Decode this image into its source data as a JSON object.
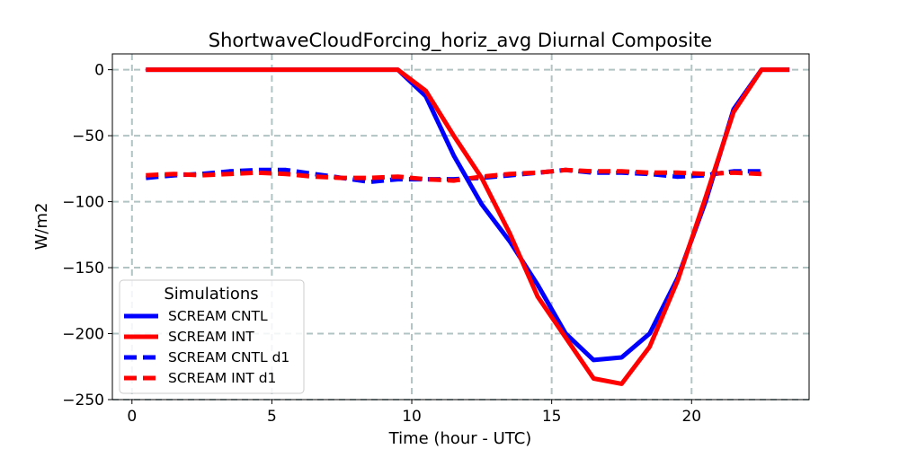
{
  "chart_data": {
    "type": "line",
    "title": "ShortwaveCloudForcing_horiz_avg Diurnal Composite",
    "xlabel": "Time (hour - UTC)",
    "ylabel": "W/m2",
    "xlim": [
      -0.7,
      24.2
    ],
    "ylim": [
      -250,
      12
    ],
    "xticks": [
      0,
      5,
      10,
      15,
      20
    ],
    "yticks": [
      0,
      -50,
      -100,
      -150,
      -200,
      -250
    ],
    "grid": true,
    "legend": {
      "title": "Simulations",
      "placement": "lower-left"
    },
    "series": [
      {
        "name": "SCREAM CNTL",
        "color": "#0000ff",
        "style": "solid",
        "x": [
          0.5,
          1.5,
          2.5,
          3.5,
          4.5,
          5.5,
          6.5,
          7.5,
          8.5,
          9.5,
          10.5,
          11.5,
          12.5,
          13.5,
          14.5,
          15.5,
          16.5,
          17.5,
          18.5,
          19.5,
          20.5,
          21.5,
          22.5,
          23.5
        ],
        "y": [
          0,
          0,
          0,
          0,
          0,
          0,
          0,
          0,
          0,
          0,
          -20,
          -65,
          -102,
          -130,
          -163,
          -200,
          -220,
          -218,
          -200,
          -158,
          -100,
          -30,
          0,
          0
        ]
      },
      {
        "name": "SCREAM INT",
        "color": "#ff0000",
        "style": "solid",
        "x": [
          0.5,
          1.5,
          2.5,
          3.5,
          4.5,
          5.5,
          6.5,
          7.5,
          8.5,
          9.5,
          10.5,
          11.5,
          12.5,
          13.5,
          14.5,
          15.5,
          16.5,
          17.5,
          18.5,
          19.5,
          20.5,
          21.5,
          22.5,
          23.5
        ],
        "y": [
          0,
          0,
          0,
          0,
          0,
          0,
          0,
          0,
          0,
          0,
          -16,
          -50,
          -82,
          -124,
          -172,
          -203,
          -234,
          -238,
          -210,
          -160,
          -97,
          -32,
          0,
          0
        ]
      },
      {
        "name": "SCREAM CNTL d1",
        "color": "#0000ff",
        "style": "dashed",
        "x": [
          0.5,
          1.5,
          2.5,
          3.5,
          4.5,
          5.5,
          6.5,
          7.5,
          8.5,
          9.5,
          10.5,
          11.5,
          12.5,
          13.5,
          14.5,
          15.5,
          16.5,
          17.5,
          18.5,
          19.5,
          20.5,
          21.5,
          22.5
        ],
        "y": [
          -82,
          -80,
          -79,
          -77,
          -76,
          -76,
          -79,
          -82,
          -85,
          -83,
          -83,
          -83,
          -82,
          -80,
          -78,
          -76,
          -78,
          -78,
          -79,
          -81,
          -80,
          -77,
          -77
        ]
      },
      {
        "name": "SCREAM INT d1",
        "color": "#ff0000",
        "style": "dashed",
        "x": [
          0.5,
          1.5,
          2.5,
          3.5,
          4.5,
          5.5,
          6.5,
          7.5,
          8.5,
          9.5,
          10.5,
          11.5,
          12.5,
          13.5,
          14.5,
          15.5,
          16.5,
          17.5,
          18.5,
          19.5,
          20.5,
          21.5,
          22.5
        ],
        "y": [
          -80,
          -79,
          -80,
          -79,
          -78,
          -79,
          -81,
          -82,
          -82,
          -81,
          -83,
          -84,
          -81,
          -79,
          -78,
          -76,
          -77,
          -77,
          -78,
          -78,
          -79,
          -78,
          -79
        ]
      }
    ]
  }
}
